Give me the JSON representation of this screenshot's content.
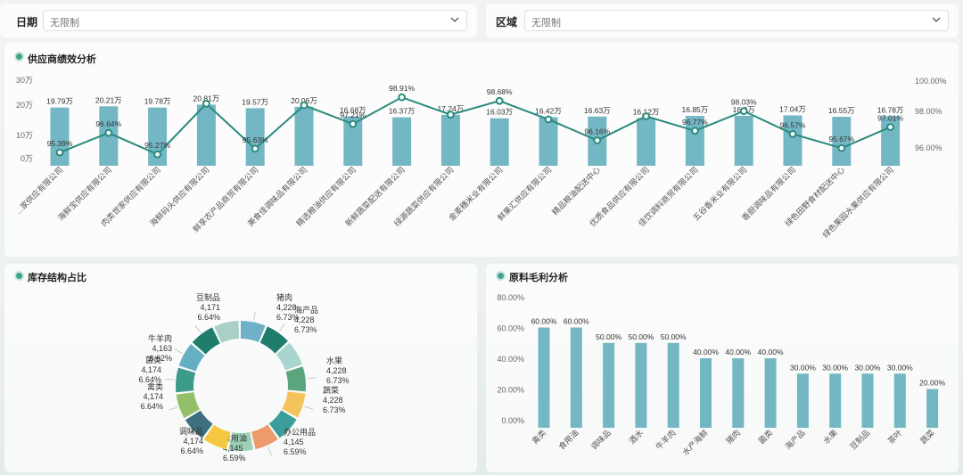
{
  "filters": {
    "date": {
      "label": "日期",
      "value": "无限制"
    },
    "region": {
      "label": "区域",
      "value": "无限制"
    }
  },
  "colors": {
    "bar": "#74b7c4",
    "line": "#2a8a7e",
    "accent": "#3fa58d"
  },
  "panels": {
    "supplier": {
      "title": "供应商绩效分析"
    },
    "inventory": {
      "title": "库存结构占比"
    },
    "margin": {
      "title": "原料毛利分析"
    }
  },
  "chart_data": [
    {
      "type": "bar",
      "title": "供应商绩效分析",
      "categories": [
        "...家供应有限公司",
        "海鲜宝供应有限公司",
        "肉类世家供应有限公司",
        "海鲜码头供应有限公司",
        "鲜享农产品商贸有限公司",
        "美食佳调味品有限公司",
        "精选粮油供应有限公司",
        "新鲜蔬菜配送有限公司",
        "绿源蔬菜供应有限公司",
        "金麦穗米业有限公司",
        "鲜果汇供应有限公司",
        "精品粮油配送中心",
        "优质食品供应有限公司",
        "佳饮调料商贸有限公司",
        "五谷香米业有限公司",
        "香厨调味品有限公司",
        "绿色田野食材配送中心",
        "绿色果园水果供应有限公司"
      ],
      "y_ticks": [
        "0万",
        "10万",
        "20万",
        "30万"
      ],
      "y2_ticks": [
        "96.00%",
        "98.00%",
        "100.00%"
      ],
      "ylim": [
        0,
        30
      ],
      "y2lim": [
        94.6,
        100
      ],
      "series": [
        {
          "kind": "bar",
          "values": [
            19.79,
            20.21,
            19.78,
            20.81,
            19.57,
            20.06,
            16.68,
            16.37,
            17.24,
            16.03,
            16.42,
            16.63,
            16.12,
            16.85,
            16.9,
            17.04,
            16.55,
            16.78
          ],
          "labels": [
            "19.79万",
            "20.21万",
            "19.78万",
            "20.81万",
            "19.57万",
            "20.06万",
            "16.68万",
            "16.37万",
            "17.24万",
            "16.03万",
            "16.42万",
            "16.63万",
            "16.12万",
            "16.85万",
            "16.9万",
            "17.04万",
            "16.55万",
            "16.78万"
          ]
        },
        {
          "kind": "line",
          "values": [
            95.39,
            96.64,
            95.27,
            98.5,
            95.63,
            98.4,
            97.21,
            98.91,
            97.8,
            98.68,
            97.5,
            96.16,
            97.7,
            96.77,
            98.03,
            96.57,
            95.67,
            97.01
          ],
          "labels": [
            "95.39%",
            "96.64%",
            "95.27%",
            "",
            "95.63%",
            "",
            "97.21%",
            "98.91%",
            "",
            "98.68%",
            "",
            "96.16%",
            "",
            "96.77%",
            "98.03%",
            "96.57%",
            "95.67%",
            "97.01%"
          ]
        }
      ]
    },
    {
      "type": "pie",
      "title": "库存结构占比",
      "slices": [
        {
          "name": "猪肉",
          "value": 4228,
          "value_text": "4,228",
          "pct": "6.73%",
          "color": "#6fb1c8"
        },
        {
          "name": "海产品",
          "value": 4228,
          "value_text": "4,228",
          "pct": "6.73%",
          "color": "#1f7d6b"
        },
        {
          "name": "",
          "value": 4228,
          "value_text": "",
          "pct": "",
          "color": "#a8d5cd"
        },
        {
          "name": "水果",
          "value": 4228,
          "value_text": "4,228",
          "pct": "6.73%",
          "color": "#5aa57e"
        },
        {
          "name": "蔬菜",
          "value": 4228,
          "value_text": "4,228",
          "pct": "6.73%",
          "color": "#f5c35b"
        },
        {
          "name": "",
          "value": 4200,
          "value_text": "",
          "pct": "",
          "color": "#3a9e9a"
        },
        {
          "name": "办公用品",
          "value": 4145,
          "value_text": "4,145",
          "pct": "6.59%",
          "color": "#ee9a6a"
        },
        {
          "name": "食用油",
          "value": 4145,
          "value_text": "4,145",
          "pct": "6.59%",
          "color": "#9ccfb5"
        },
        {
          "name": "",
          "value": 4160,
          "value_text": "",
          "pct": "",
          "color": "#f5c842"
        },
        {
          "name": "调味品",
          "value": 4174,
          "value_text": "4,174",
          "pct": "6.64%",
          "color": "#3e6f7e"
        },
        {
          "name": "禽类",
          "value": 4174,
          "value_text": "4,174",
          "pct": "6.64%",
          "color": "#93be6a"
        },
        {
          "name": "菌类",
          "value": 4174,
          "value_text": "4,174",
          "pct": "6.64%",
          "color": "#3c9a8a"
        },
        {
          "name": "牛羊肉",
          "value": 4163,
          "value_text": "4,163",
          "pct": "6.62%",
          "color": "#66afc3"
        },
        {
          "name": "豆制品",
          "value": 4171,
          "value_text": "4,171",
          "pct": "6.64%",
          "color": "#1f7d6b"
        },
        {
          "name": "",
          "value": 4200,
          "value_text": "",
          "pct": "",
          "color": "#a9cfc7"
        }
      ]
    },
    {
      "type": "bar",
      "title": "原料毛利分析",
      "categories": [
        "禽类",
        "食用油",
        "调味品",
        "酒水",
        "牛羊肉",
        "水产海鲜",
        "猪肉",
        "菌类",
        "海产品",
        "水果",
        "豆制品",
        "茶叶",
        "蔬菜"
      ],
      "values": [
        60,
        60,
        50,
        50,
        50,
        40,
        40,
        40,
        30,
        30,
        30,
        30,
        20
      ],
      "labels": [
        "60.00%",
        "60.00%",
        "50.00%",
        "50.00%",
        "50.00%",
        "40.00%",
        "40.00%",
        "40.00%",
        "30.00%",
        "30.00%",
        "30.00%",
        "30.00%",
        "20.00%"
      ],
      "y_ticks": [
        "0.00%",
        "20.00%",
        "40.00%",
        "60.00%",
        "80.00%"
      ],
      "ylim": [
        0,
        80
      ]
    }
  ]
}
